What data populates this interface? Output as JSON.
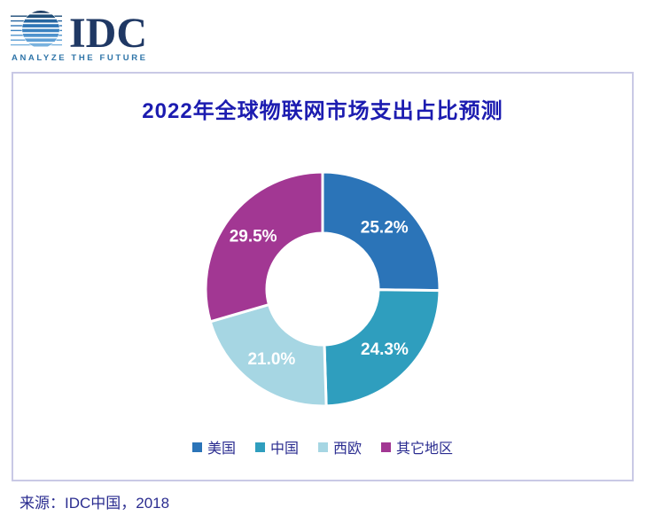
{
  "logo": {
    "text": "IDC",
    "tagline": "ANALYZE THE FUTURE",
    "navy": "#1f3864",
    "tagline_color": "#2e74a8"
  },
  "chart_data": {
    "type": "pie",
    "subtype": "donut",
    "title": "2022年全球物联网市场支出占比预测",
    "categories": [
      "美国",
      "中国",
      "西欧",
      "其它地区"
    ],
    "values": [
      25.2,
      24.3,
      21.0,
      29.5
    ],
    "labels": [
      "25.2%",
      "24.3%",
      "21.0%",
      "29.5%"
    ],
    "colors": [
      "#2b74b8",
      "#2f9ebe",
      "#a6d6e3",
      "#a23793"
    ],
    "start_angle_deg": 0,
    "direction": "clockwise",
    "inner_radius_ratio": 0.48,
    "legend_position": "bottom",
    "label_color": "#ffffff"
  },
  "footer": {
    "source": "来源：IDC中国，2018"
  },
  "theme": {
    "title_color": "#1c1cb0",
    "text_color": "#2b2d90",
    "box_border_color": "#c9c9e5",
    "background": "#ffffff"
  }
}
